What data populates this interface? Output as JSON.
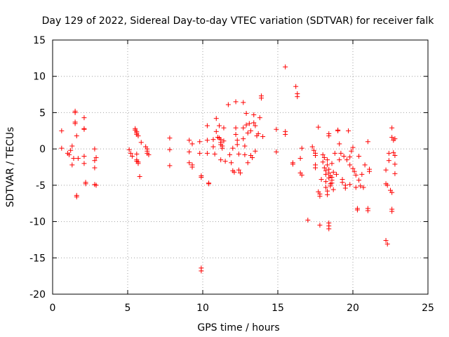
{
  "chart_data": {
    "type": "scatter",
    "title": "Day 129 of 2022, Sidereal Day-to-day VTEC variation (SDTVAR) for receiver falk",
    "xlabel": "GPS time / hours",
    "ylabel": "SDTVAR / TECUs",
    "xlim": [
      0,
      25
    ],
    "ylim": [
      -20,
      15
    ],
    "xticks": [
      0,
      5,
      10,
      15,
      20,
      25
    ],
    "yticks": [
      -20,
      -15,
      -10,
      -5,
      0,
      5,
      10,
      15
    ],
    "grid": true,
    "marker": "+",
    "color": "#ff0000",
    "series": [
      {
        "name": "SDTVAR",
        "points": [
          [
            0.6,
            2.5
          ],
          [
            0.6,
            0.1
          ],
          [
            1.0,
            -0.6
          ],
          [
            1.1,
            -0.8
          ],
          [
            1.2,
            -0.2
          ],
          [
            1.3,
            0.4
          ],
          [
            1.3,
            -2.2
          ],
          [
            1.4,
            -1.3
          ],
          [
            1.5,
            5.2
          ],
          [
            1.5,
            5.0
          ],
          [
            1.5,
            3.7
          ],
          [
            1.5,
            3.5
          ],
          [
            1.6,
            1.8
          ],
          [
            1.6,
            -6.4
          ],
          [
            1.6,
            -6.6
          ],
          [
            1.7,
            -1.3
          ],
          [
            2.1,
            4.3
          ],
          [
            2.1,
            2.8
          ],
          [
            2.1,
            2.7
          ],
          [
            2.1,
            -1.0
          ],
          [
            2.1,
            -2.0
          ],
          [
            2.2,
            -4.6
          ],
          [
            2.2,
            -4.8
          ],
          [
            2.8,
            0.0
          ],
          [
            2.8,
            -1.6
          ],
          [
            2.8,
            -2.6
          ],
          [
            2.8,
            -4.9
          ],
          [
            2.9,
            -5.0
          ],
          [
            2.9,
            -1.2
          ],
          [
            5.1,
            -0.1
          ],
          [
            5.2,
            -0.6
          ],
          [
            5.3,
            -1.0
          ],
          [
            5.5,
            2.8
          ],
          [
            5.5,
            2.6
          ],
          [
            5.6,
            2.4
          ],
          [
            5.6,
            2.2
          ],
          [
            5.6,
            2.0
          ],
          [
            5.7,
            1.8
          ],
          [
            5.6,
            -1.5
          ],
          [
            5.6,
            -1.7
          ],
          [
            5.7,
            -2.0
          ],
          [
            5.7,
            -1.8
          ],
          [
            5.6,
            -0.7
          ],
          [
            5.8,
            -3.8
          ],
          [
            5.9,
            0.9
          ],
          [
            6.2,
            0.3
          ],
          [
            6.3,
            0.0
          ],
          [
            6.3,
            -0.3
          ],
          [
            6.3,
            -0.6
          ],
          [
            6.4,
            -0.8
          ],
          [
            7.8,
            1.5
          ],
          [
            7.8,
            -0.1
          ],
          [
            7.8,
            -2.3
          ],
          [
            9.1,
            1.2
          ],
          [
            9.1,
            -0.4
          ],
          [
            9.1,
            -1.9
          ],
          [
            9.3,
            -2.2
          ],
          [
            9.3,
            -2.5
          ],
          [
            9.3,
            0.7
          ],
          [
            9.8,
            1.0
          ],
          [
            9.8,
            -0.6
          ],
          [
            9.9,
            -3.7
          ],
          [
            9.9,
            -3.9
          ],
          [
            9.9,
            -16.4
          ],
          [
            9.9,
            -16.8
          ],
          [
            10.3,
            3.2
          ],
          [
            10.3,
            1.2
          ],
          [
            10.3,
            -0.6
          ],
          [
            10.4,
            -4.7
          ],
          [
            10.4,
            -4.8
          ],
          [
            10.7,
            1.3
          ],
          [
            10.7,
            0.3
          ],
          [
            10.8,
            -0.7
          ],
          [
            10.9,
            4.2
          ],
          [
            10.9,
            2.4
          ],
          [
            11.0,
            1.6
          ],
          [
            11.1,
            3.2
          ],
          [
            11.1,
            1.5
          ],
          [
            11.2,
            1.3
          ],
          [
            11.2,
            0.9
          ],
          [
            11.2,
            0.6
          ],
          [
            11.3,
            0.4
          ],
          [
            11.3,
            0.1
          ],
          [
            11.4,
            1.1
          ],
          [
            11.4,
            2.9
          ],
          [
            11.2,
            -1.5
          ],
          [
            11.5,
            -1.7
          ],
          [
            11.7,
            6.1
          ],
          [
            11.8,
            -0.8
          ],
          [
            11.9,
            -1.9
          ],
          [
            12.0,
            0.1
          ],
          [
            12.0,
            -3.0
          ],
          [
            12.1,
            -3.2
          ],
          [
            12.2,
            6.5
          ],
          [
            12.2,
            2.9
          ],
          [
            12.2,
            2.0
          ],
          [
            12.3,
            1.2
          ],
          [
            12.3,
            0.6
          ],
          [
            12.4,
            -0.7
          ],
          [
            12.4,
            -2.9
          ],
          [
            12.5,
            -3.3
          ],
          [
            12.7,
            6.4
          ],
          [
            12.7,
            2.9
          ],
          [
            12.7,
            1.4
          ],
          [
            12.8,
            0.4
          ],
          [
            12.8,
            -0.8
          ],
          [
            12.9,
            4.9
          ],
          [
            12.9,
            3.3
          ],
          [
            13.0,
            2.2
          ],
          [
            13.0,
            -1.9
          ],
          [
            13.1,
            3.5
          ],
          [
            13.2,
            2.5
          ],
          [
            13.2,
            -0.9
          ],
          [
            13.3,
            -1.2
          ],
          [
            13.4,
            4.7
          ],
          [
            13.4,
            3.6
          ],
          [
            13.5,
            3.2
          ],
          [
            13.5,
            -0.3
          ],
          [
            13.6,
            1.8
          ],
          [
            13.7,
            2.1
          ],
          [
            13.8,
            4.3
          ],
          [
            13.9,
            7.3
          ],
          [
            13.9,
            7.0
          ],
          [
            14.0,
            1.7
          ],
          [
            14.9,
            2.7
          ],
          [
            14.9,
            -0.4
          ],
          [
            15.5,
            11.3
          ],
          [
            15.5,
            2.4
          ],
          [
            15.5,
            2.0
          ],
          [
            16.0,
            -1.9
          ],
          [
            16.0,
            -2.1
          ],
          [
            16.2,
            8.6
          ],
          [
            16.3,
            7.6
          ],
          [
            16.3,
            7.2
          ],
          [
            16.5,
            -1.3
          ],
          [
            16.5,
            -3.3
          ],
          [
            16.6,
            -3.6
          ],
          [
            16.6,
            0.1
          ],
          [
            17.0,
            -9.8
          ],
          [
            17.3,
            0.3
          ],
          [
            17.4,
            -0.2
          ],
          [
            17.5,
            -0.6
          ],
          [
            17.5,
            -2.2
          ],
          [
            17.5,
            -2.6
          ],
          [
            17.5,
            -0.9
          ],
          [
            17.7,
            3.0
          ],
          [
            17.7,
            -5.9
          ],
          [
            17.8,
            -6.2
          ],
          [
            17.8,
            -6.5
          ],
          [
            17.8,
            -10.5
          ],
          [
            17.9,
            -4.2
          ],
          [
            18.0,
            -0.8
          ],
          [
            18.0,
            -1.8
          ],
          [
            18.1,
            -1.2
          ],
          [
            18.1,
            -2.6
          ],
          [
            18.2,
            -3.0
          ],
          [
            18.2,
            -3.5
          ],
          [
            18.2,
            -4.5
          ],
          [
            18.2,
            -5.3
          ],
          [
            18.3,
            -5.8
          ],
          [
            18.3,
            -6.3
          ],
          [
            18.3,
            -1.5
          ],
          [
            18.3,
            -2.2
          ],
          [
            18.4,
            2.1
          ],
          [
            18.4,
            1.8
          ],
          [
            18.4,
            -2.8
          ],
          [
            18.4,
            -3.3
          ],
          [
            18.4,
            -4.0
          ],
          [
            18.4,
            -10.2
          ],
          [
            18.4,
            -10.6
          ],
          [
            18.4,
            -11.0
          ],
          [
            18.5,
            -3.7
          ],
          [
            18.5,
            -4.8
          ],
          [
            18.5,
            -5.1
          ],
          [
            18.6,
            -2.0
          ],
          [
            18.6,
            -3.9
          ],
          [
            18.6,
            -4.3
          ],
          [
            18.6,
            -4.7
          ],
          [
            18.7,
            -3.2
          ],
          [
            18.7,
            -5.6
          ],
          [
            18.8,
            -0.6
          ],
          [
            18.9,
            -3.5
          ],
          [
            19.0,
            2.6
          ],
          [
            19.0,
            2.5
          ],
          [
            19.1,
            0.7
          ],
          [
            19.1,
            -1.5
          ],
          [
            19.2,
            -0.6
          ],
          [
            19.3,
            -4.2
          ],
          [
            19.3,
            -4.6
          ],
          [
            19.4,
            -1.0
          ],
          [
            19.5,
            -5.0
          ],
          [
            19.5,
            -5.4
          ],
          [
            19.6,
            -1.5
          ],
          [
            19.7,
            2.5
          ],
          [
            19.8,
            -1.1
          ],
          [
            19.8,
            -2.2
          ],
          [
            19.8,
            -4.9
          ],
          [
            19.9,
            -0.3
          ],
          [
            20.0,
            0.2
          ],
          [
            20.0,
            -2.7
          ],
          [
            20.1,
            -3.1
          ],
          [
            20.2,
            -3.6
          ],
          [
            20.2,
            -5.3
          ],
          [
            20.3,
            -8.2
          ],
          [
            20.3,
            -8.4
          ],
          [
            20.4,
            -1.0
          ],
          [
            20.4,
            -4.3
          ],
          [
            20.5,
            -5.1
          ],
          [
            20.6,
            -3.5
          ],
          [
            20.7,
            -5.3
          ],
          [
            20.8,
            -2.2
          ],
          [
            21.0,
            -8.2
          ],
          [
            21.0,
            -8.5
          ],
          [
            21.0,
            1.0
          ],
          [
            21.1,
            -2.8
          ],
          [
            21.1,
            -3.1
          ],
          [
            22.2,
            -2.9
          ],
          [
            22.2,
            -4.8
          ],
          [
            22.3,
            -5.0
          ],
          [
            22.2,
            -12.6
          ],
          [
            22.3,
            -13.1
          ],
          [
            22.4,
            -0.6
          ],
          [
            22.4,
            -1.6
          ],
          [
            22.5,
            -5.7
          ],
          [
            22.6,
            -8.3
          ],
          [
            22.6,
            -8.6
          ],
          [
            22.6,
            -6.0
          ],
          [
            22.6,
            2.9
          ],
          [
            22.6,
            1.6
          ],
          [
            22.7,
            1.2
          ],
          [
            22.7,
            -0.5
          ],
          [
            22.8,
            1.4
          ],
          [
            22.8,
            -2.1
          ],
          [
            22.8,
            -3.4
          ],
          [
            22.8,
            -0.9
          ]
        ]
      }
    ]
  }
}
